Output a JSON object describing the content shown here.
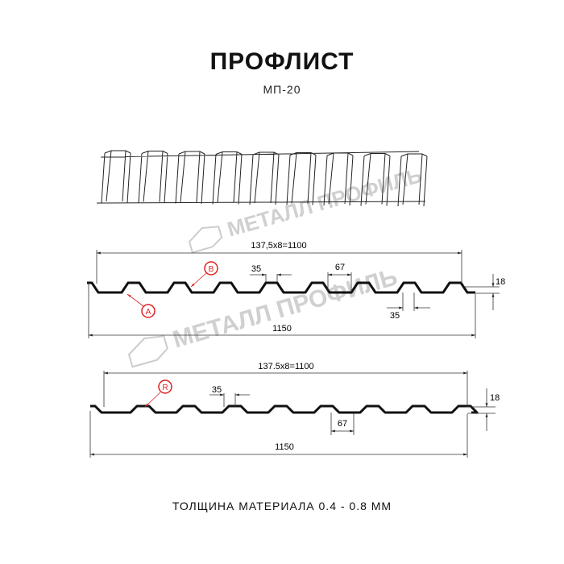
{
  "title": "ПРОФЛИСТ",
  "subtitle": "МП-20",
  "footer": "ТОЛЩИНА МАТЕРИАЛА 0.4 - 0.8 ММ",
  "watermark": "МЕТАЛЛ ПРОФИЛЬ",
  "profile_1": {
    "span_label": "137,5x8=1100",
    "total_label": "1150",
    "top_width_label": "35",
    "bottom_width_label": "35",
    "bottom_gap_label": "67",
    "height_label": "18",
    "marker_a": "A",
    "marker_b": "B"
  },
  "profile_2": {
    "span_label": "137.5x8=1100",
    "total_label": "1150",
    "top_width_label": "35",
    "bottom_gap_label": "67",
    "height_label": "18",
    "marker_r": "R"
  },
  "colors": {
    "line": "#111111",
    "marker": "#e02020",
    "watermark": "#cccccc"
  }
}
